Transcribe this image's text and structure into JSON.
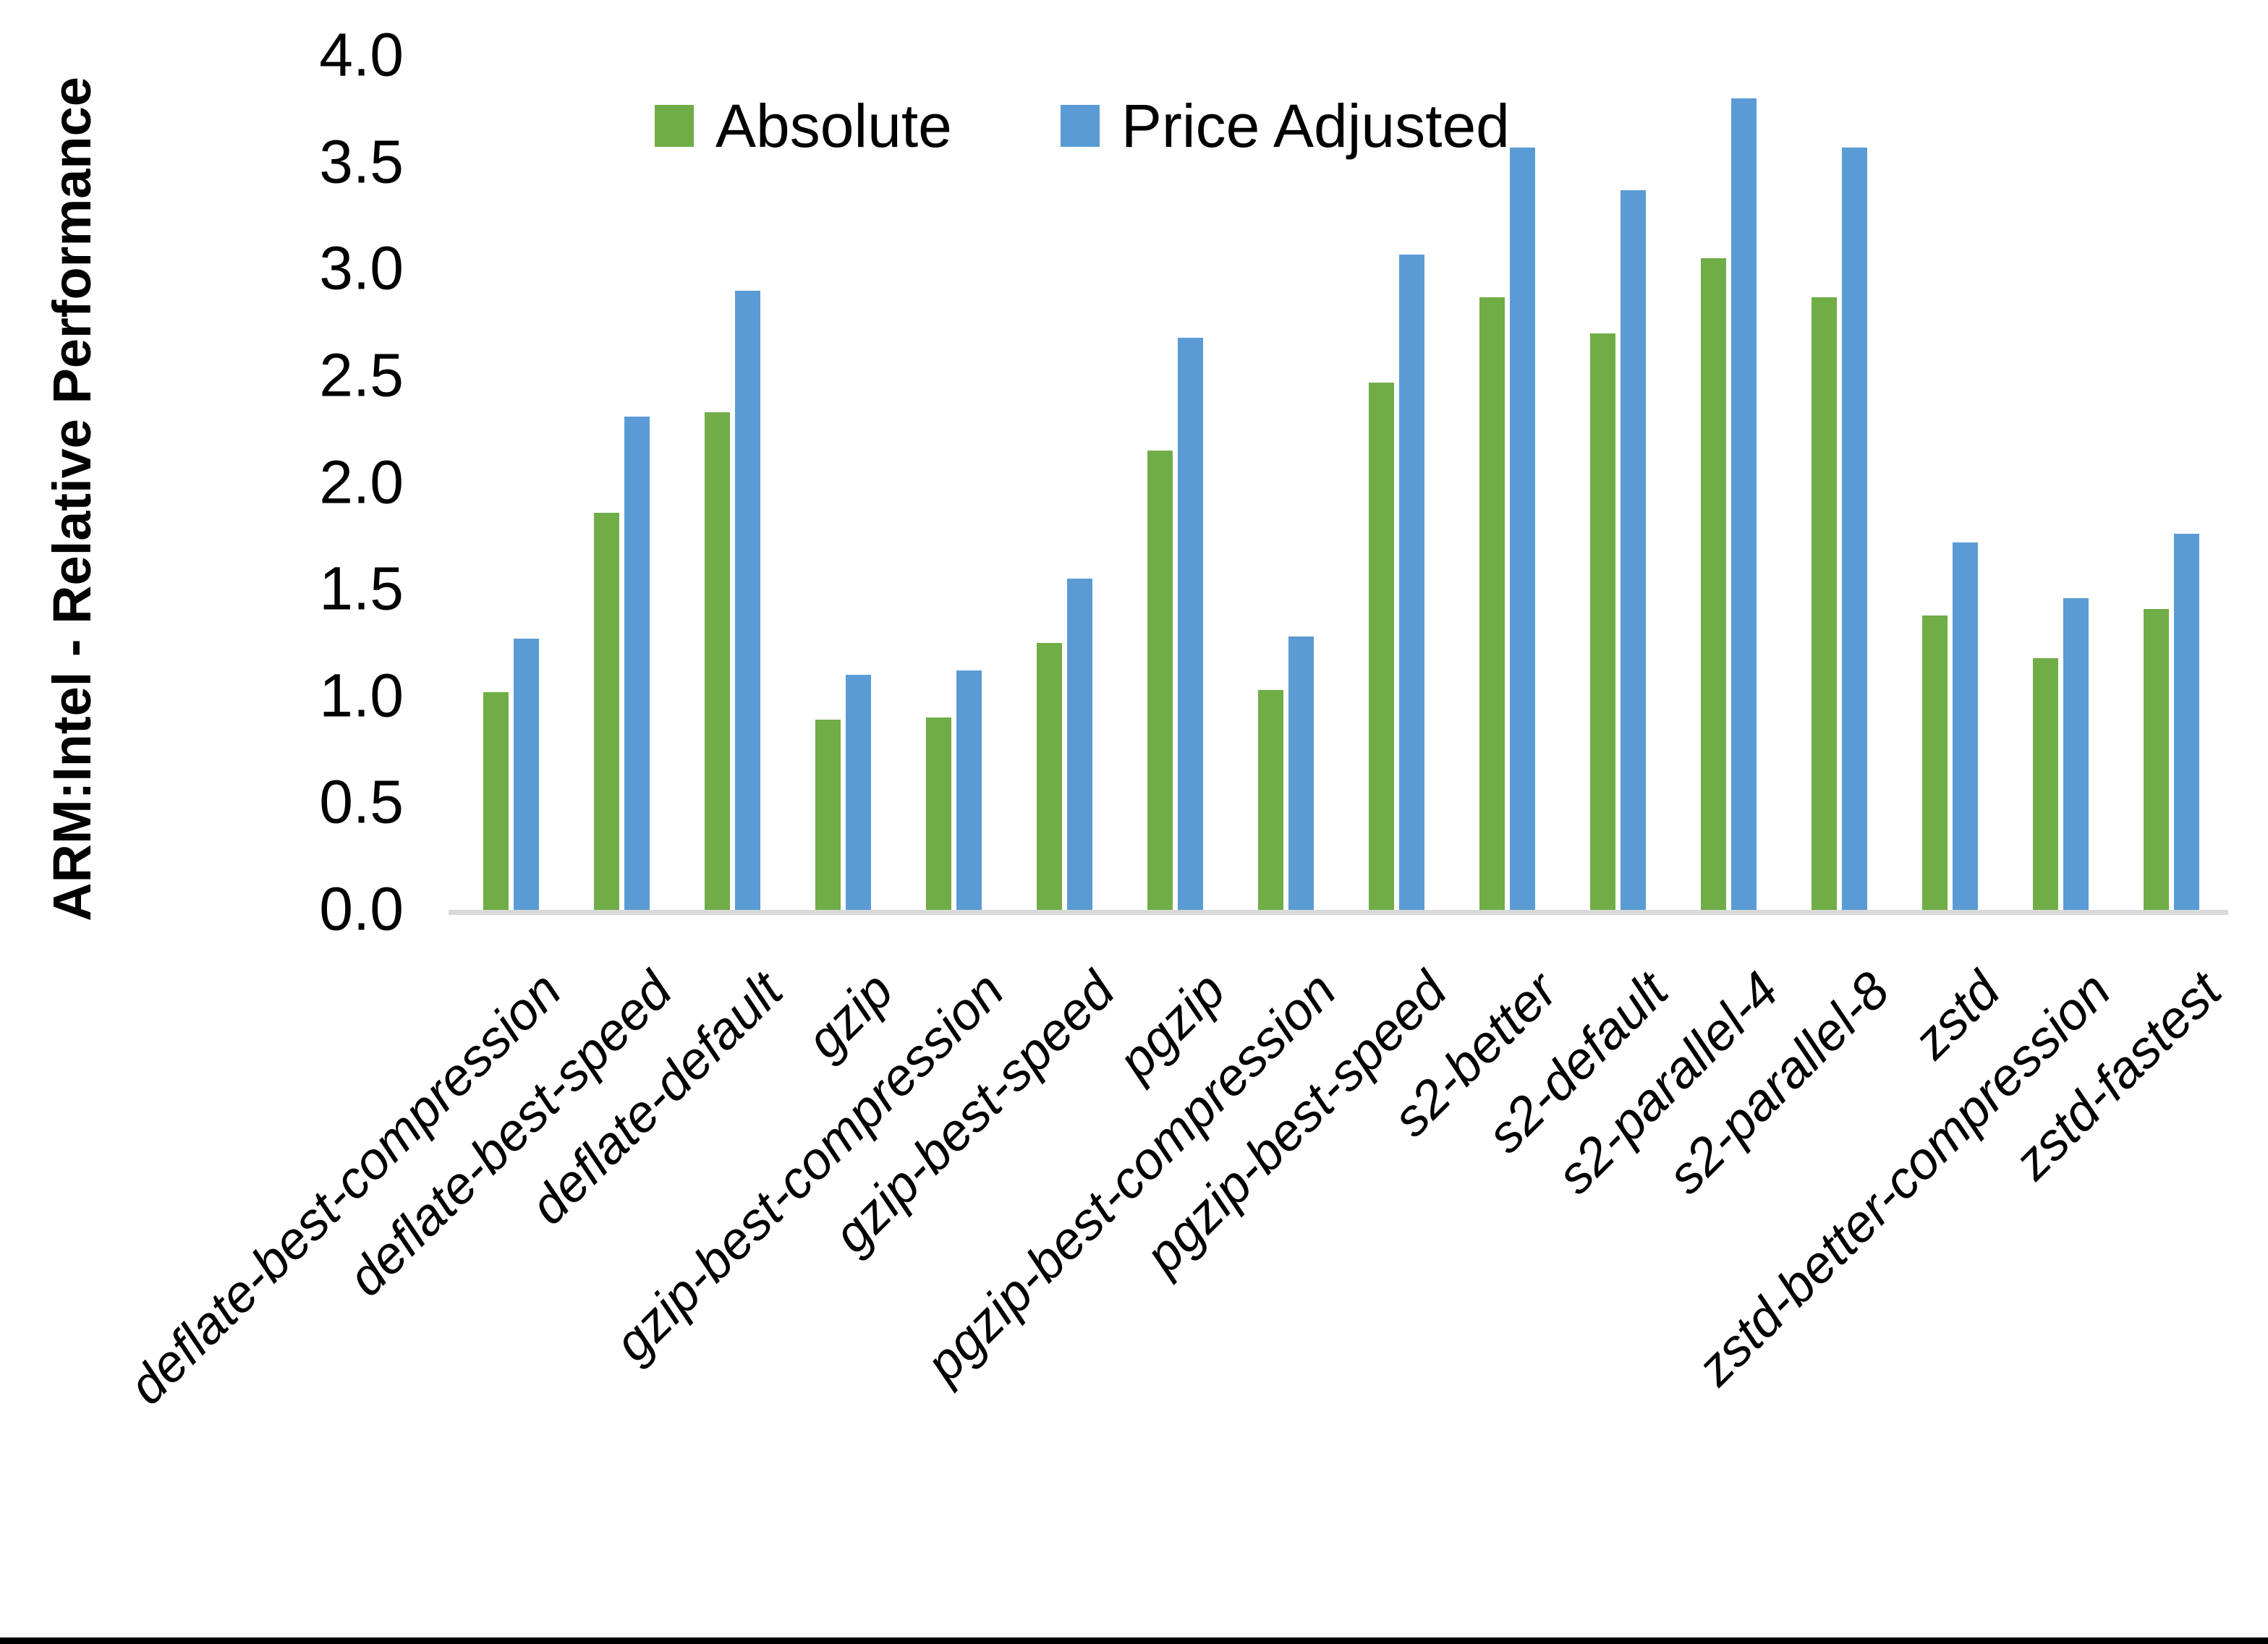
{
  "chart_data": {
    "type": "bar",
    "title": "",
    "xlabel": "",
    "ylabel": "ARM:Intel - Relative Performance",
    "ylim": [
      0,
      4
    ],
    "ytick_step": 0.5,
    "ytick_labels": [
      "0.0",
      "0.5",
      "1.0",
      "1.5",
      "2.0",
      "2.5",
      "3.0",
      "3.5",
      "4.0"
    ],
    "grid": false,
    "legend_position": "top-center",
    "axis_line_color": "#D9D9D9",
    "bottom_border_color": "#000000",
    "categories": [
      "deflate-best-compression",
      "deflate-best-speed",
      "deflate-default",
      "gzip",
      "gzip-best-compression",
      "gzip-best-speed",
      "pgzip",
      "pgzip-best-compression",
      "pgzip-best-speed",
      "s2-better",
      "s2-default",
      "s2-parallel-4",
      "s2-parallel-8",
      "zstd",
      "zstd-better-compression",
      "zstd-fastest"
    ],
    "series": [
      {
        "name": "Absolute",
        "color": "#70AD47",
        "values": [
          1.02,
          1.86,
          2.33,
          0.89,
          0.9,
          1.25,
          2.15,
          1.03,
          2.47,
          2.87,
          2.7,
          3.05,
          2.87,
          1.38,
          1.18,
          1.41
        ]
      },
      {
        "name": "Price Adjusted",
        "color": "#5B9BD5",
        "values": [
          1.27,
          2.31,
          2.9,
          1.1,
          1.12,
          1.55,
          2.68,
          1.28,
          3.07,
          3.57,
          3.37,
          3.8,
          3.57,
          1.72,
          1.46,
          1.76
        ]
      }
    ]
  }
}
